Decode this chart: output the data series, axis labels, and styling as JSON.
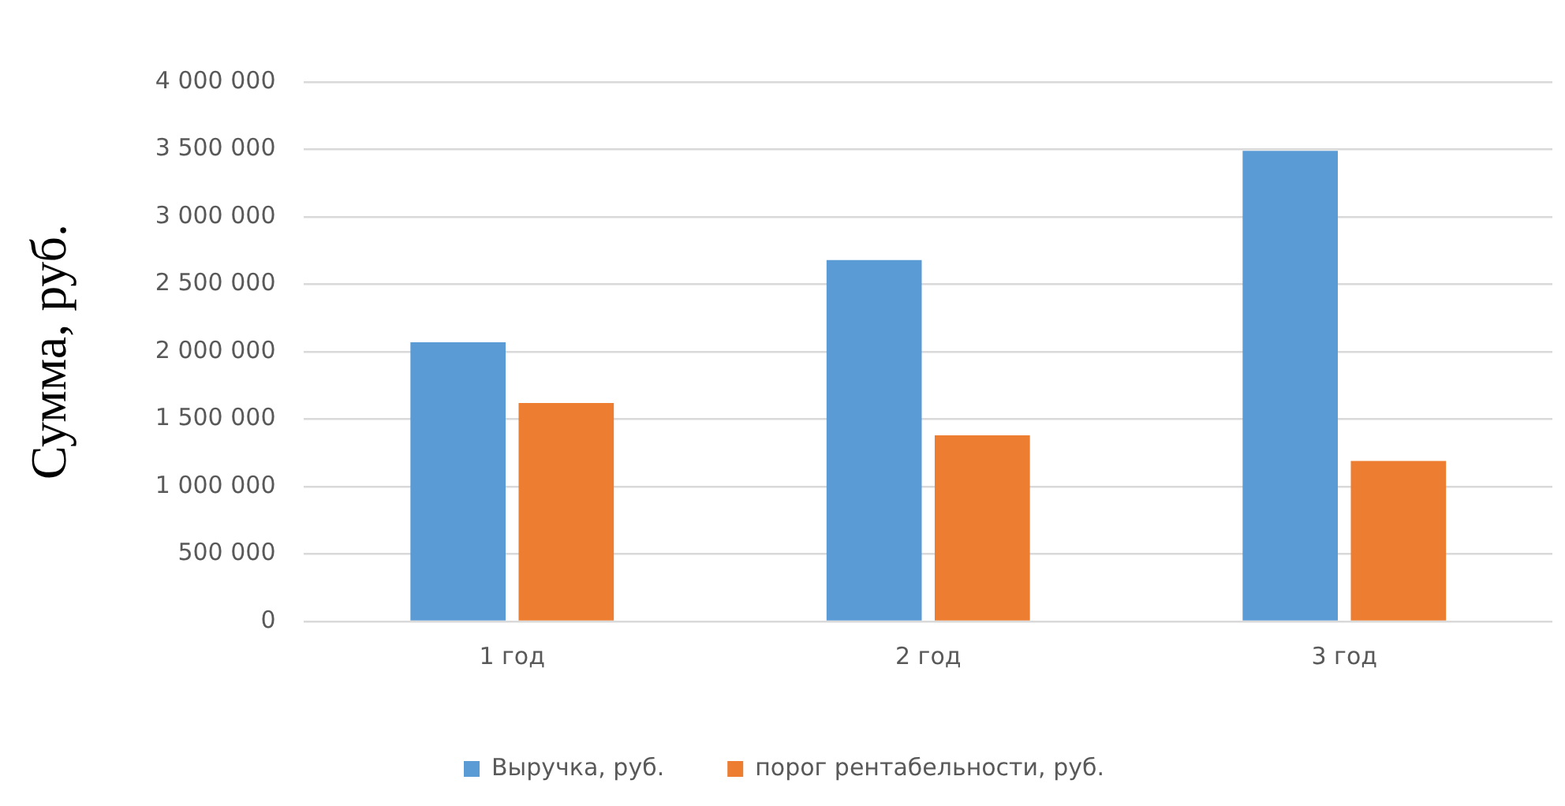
{
  "chart_data": {
    "type": "bar",
    "ylabel": "Сумма, руб.",
    "categories": [
      "1 год",
      "2 год",
      "3 год"
    ],
    "series": [
      {
        "name": "Выручка, руб.",
        "color": "#5b9bd5",
        "values": [
          2070000,
          2680000,
          3490000
        ]
      },
      {
        "name": "порог рентабельности, руб.",
        "color": "#ed7d31",
        "values": [
          1620000,
          1380000,
          1190000
        ]
      }
    ],
    "ylim": [
      0,
      4000000
    ],
    "yticks": [
      {
        "value": 0,
        "label": "0"
      },
      {
        "value": 500000,
        "label": "500 000"
      },
      {
        "value": 1000000,
        "label": "1 000 000"
      },
      {
        "value": 1500000,
        "label": "1 500 000"
      },
      {
        "value": 2000000,
        "label": "2 000 000"
      },
      {
        "value": 2500000,
        "label": "2 500 000"
      },
      {
        "value": 3000000,
        "label": "3 000 000"
      },
      {
        "value": 3500000,
        "label": "3 500 000"
      },
      {
        "value": 4000000,
        "label": "4 000 000"
      }
    ],
    "grid": "y",
    "legend": "bottom"
  }
}
